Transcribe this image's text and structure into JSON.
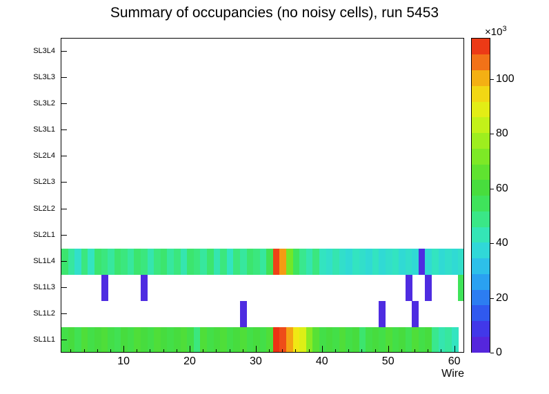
{
  "chart_data": {
    "type": "heatmap",
    "title": "Summary of occupancies (no noisy cells), run 5453",
    "xlabel": "Wire",
    "x_min": 0.5,
    "x_max": 61.5,
    "x_ticks": [
      10,
      20,
      30,
      40,
      50,
      60
    ],
    "x_minor_tick_step": 2,
    "y_rows_top_to_bottom": [
      "SL3L4",
      "SL3L3",
      "SL3L2",
      "SL3L1",
      "SL2L4",
      "SL2L3",
      "SL2L2",
      "SL2L1",
      "SL1L4",
      "SL1L3",
      "SL1L2",
      "SL1L1"
    ],
    "empty_rows": [
      "SL2L1",
      "SL2L2",
      "SL2L3",
      "SL2L4",
      "SL3L1",
      "SL3L2",
      "SL3L3",
      "SL3L4"
    ],
    "z_max": 115,
    "z_ticks": [
      0,
      20,
      40,
      60,
      80,
      100
    ],
    "z_scale": {
      "mantissa": "×10",
      "exponent": "3"
    },
    "palette": [
      {
        "f": 0.0,
        "c": "#5f1ed6"
      },
      {
        "f": 0.07,
        "c": "#4335e8"
      },
      {
        "f": 0.13,
        "c": "#2e5cf0"
      },
      {
        "f": 0.217,
        "c": "#2a9cf2"
      },
      {
        "f": 0.304,
        "c": "#2ed2e4"
      },
      {
        "f": 0.365,
        "c": "#33e4c0"
      },
      {
        "f": 0.417,
        "c": "#39e88e"
      },
      {
        "f": 0.47,
        "c": "#3ee45e"
      },
      {
        "f": 0.52,
        "c": "#46dc3e"
      },
      {
        "f": 0.59,
        "c": "#66e52c"
      },
      {
        "f": 0.678,
        "c": "#a0ee1e"
      },
      {
        "f": 0.748,
        "c": "#d4f217"
      },
      {
        "f": 0.8,
        "c": "#f0e814"
      },
      {
        "f": 0.86,
        "c": "#f4bf13"
      },
      {
        "f": 0.904,
        "c": "#f49213"
      },
      {
        "f": 0.94,
        "c": "#f05c1c"
      },
      {
        "f": 1.0,
        "c": "#e92111"
      }
    ],
    "rows": {
      "SL1L4": {
        "start_wire": 1,
        "values": [
          52,
          46,
          40,
          50,
          42,
          52,
          50,
          46,
          52,
          50,
          46,
          52,
          50,
          44,
          50,
          52,
          46,
          50,
          44,
          52,
          50,
          46,
          52,
          44,
          50,
          42,
          50,
          46,
          52,
          50,
          46,
          56,
          111,
          103,
          70,
          54,
          48,
          44,
          50,
          42,
          40,
          44,
          40,
          38,
          42,
          40,
          38,
          42,
          38,
          40,
          42,
          38,
          40,
          38,
          5,
          38,
          42,
          38,
          40,
          38,
          40
        ]
      },
      "SL1L3": {
        "cells": [
          {
            "wire": 7,
            "value": 5
          },
          {
            "wire": 13,
            "value": 5
          },
          {
            "wire": 53,
            "value": 5
          },
          {
            "wire": 56,
            "value": 5
          },
          {
            "wire": 61,
            "value": 55
          }
        ]
      },
      "SL1L2": {
        "cells": [
          {
            "wire": 28,
            "value": 5
          },
          {
            "wire": 49,
            "value": 5
          },
          {
            "wire": 54,
            "value": 5
          }
        ]
      },
      "SL1L1": {
        "start_wire": 1,
        "values": [
          58,
          60,
          56,
          62,
          58,
          60,
          62,
          58,
          56,
          60,
          58,
          62,
          60,
          58,
          62,
          60,
          58,
          60,
          62,
          58,
          50,
          62,
          58,
          60,
          62,
          58,
          60,
          62,
          58,
          60,
          58,
          62,
          113,
          110,
          102,
          92,
          88,
          74,
          64,
          58,
          60,
          58,
          62,
          58,
          60,
          52,
          58,
          60,
          58,
          62,
          58,
          60,
          56,
          62,
          58,
          60,
          48,
          44,
          46,
          42
        ]
      }
    }
  }
}
